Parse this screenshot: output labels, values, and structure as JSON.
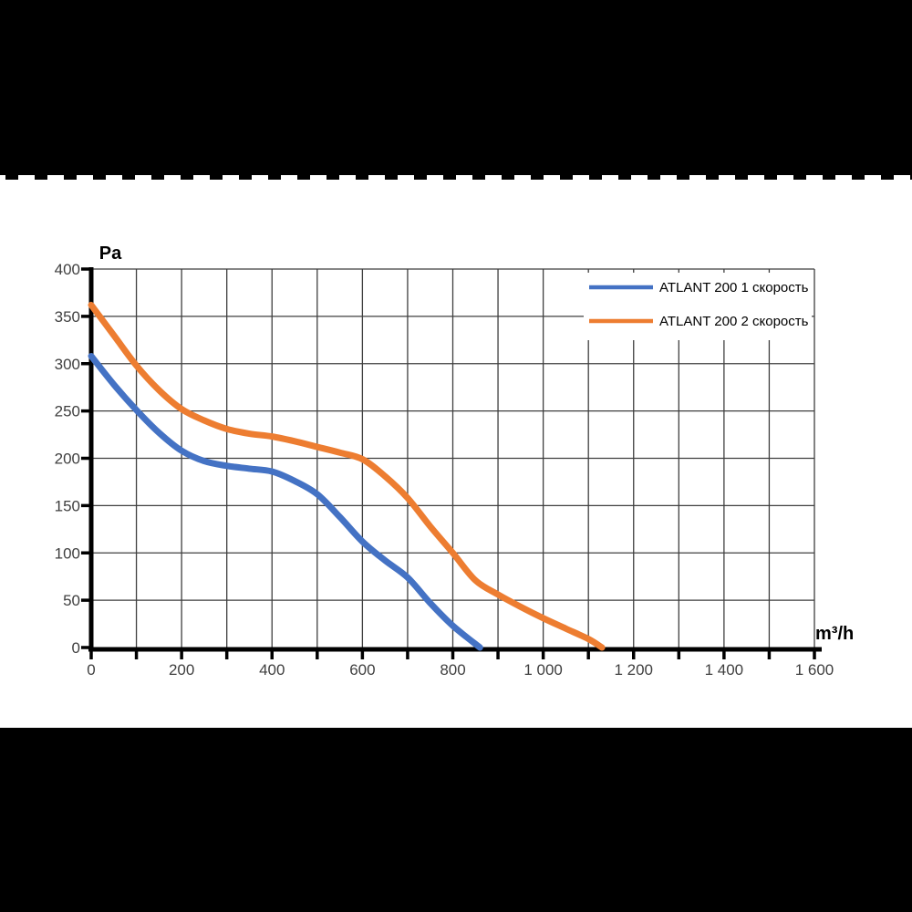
{
  "page": {
    "background_color": "#ffffff",
    "band_color": "#000000"
  },
  "chart_data": {
    "type": "line",
    "title": "",
    "xlabel": "m³/h",
    "ylabel": "Pa",
    "xlim": [
      0,
      1600
    ],
    "ylim": [
      0,
      400
    ],
    "grid": "both",
    "grid_color": "#3f3f3f",
    "axis_color": "#000000",
    "tick_label_color": "#3f3f3f",
    "legend_position": "top-right-inside",
    "x_major_ticks": [
      0,
      200,
      400,
      600,
      800,
      1000,
      1200,
      1400,
      1600
    ],
    "x_tick_labels": [
      "0",
      "200",
      "400",
      "600",
      "800",
      "1 000",
      "1 200",
      "1 400",
      "1 600"
    ],
    "x_minor_tick_step": 100,
    "y_ticks": [
      0,
      50,
      100,
      150,
      200,
      250,
      300,
      350,
      400
    ],
    "y_tick_labels": [
      "0",
      "50",
      "100",
      "150",
      "200",
      "250",
      "300",
      "350",
      "400"
    ],
    "series": [
      {
        "name": "ATLANT 200 1 скорость",
        "color": "#4472C4",
        "points": [
          [
            0,
            308
          ],
          [
            50,
            278
          ],
          [
            100,
            251
          ],
          [
            150,
            227
          ],
          [
            200,
            208
          ],
          [
            250,
            197
          ],
          [
            300,
            192
          ],
          [
            350,
            189
          ],
          [
            400,
            186
          ],
          [
            450,
            176
          ],
          [
            500,
            162
          ],
          [
            550,
            138
          ],
          [
            600,
            112
          ],
          [
            650,
            92
          ],
          [
            700,
            74
          ],
          [
            750,
            47
          ],
          [
            800,
            23
          ],
          [
            860,
            0
          ]
        ]
      },
      {
        "name": "ATLANT 200 2 скорость",
        "color": "#ED7D31",
        "points": [
          [
            0,
            362
          ],
          [
            50,
            330
          ],
          [
            100,
            298
          ],
          [
            150,
            272
          ],
          [
            200,
            252
          ],
          [
            250,
            240
          ],
          [
            300,
            231
          ],
          [
            350,
            226
          ],
          [
            400,
            223
          ],
          [
            450,
            218
          ],
          [
            500,
            212
          ],
          [
            550,
            206
          ],
          [
            600,
            199
          ],
          [
            650,
            181
          ],
          [
            700,
            158
          ],
          [
            750,
            128
          ],
          [
            800,
            100
          ],
          [
            850,
            71
          ],
          [
            900,
            56
          ],
          [
            950,
            43
          ],
          [
            1000,
            31
          ],
          [
            1050,
            20
          ],
          [
            1100,
            9
          ],
          [
            1130,
            0
          ]
        ]
      }
    ]
  }
}
